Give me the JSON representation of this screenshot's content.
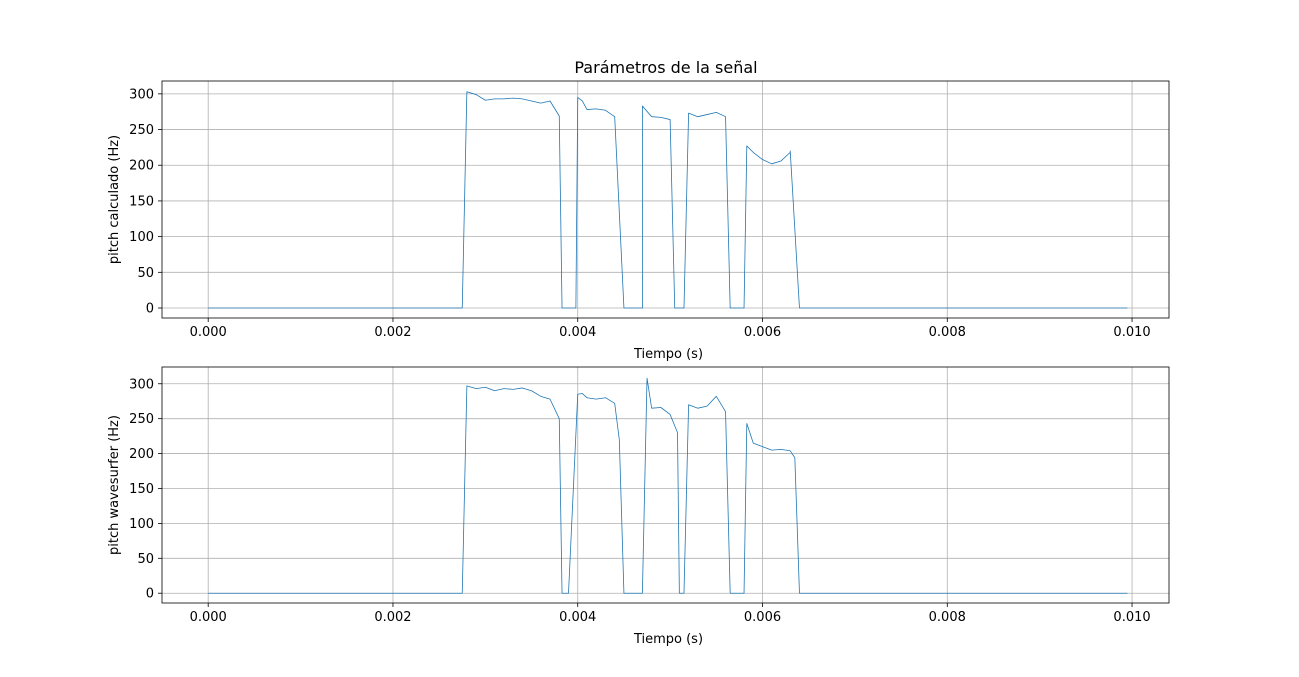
{
  "figure": {
    "title": "Parámetros de la señal"
  },
  "chart_data": [
    {
      "type": "line",
      "xlabel": "Tiempo (s)",
      "ylabel": "pitch calculado (Hz)",
      "xlim": [
        -0.0005,
        0.0104
      ],
      "ylim": [
        -14,
        318
      ],
      "xticks": [
        0.0,
        0.002,
        0.004,
        0.006,
        0.008,
        0.01
      ],
      "xtick_labels": [
        "0.000",
        "0.002",
        "0.004",
        "0.006",
        "0.008",
        "0.010"
      ],
      "yticks": [
        0,
        50,
        100,
        150,
        200,
        250,
        300
      ],
      "ytick_labels": [
        "0",
        "50",
        "100",
        "150",
        "200",
        "250",
        "300"
      ],
      "grid": true,
      "line_color": "#1f77b4",
      "series": [
        {
          "x": [
            0.0,
            0.00275,
            0.0028,
            0.0029,
            0.003,
            0.0031,
            0.0032,
            0.0033,
            0.0034,
            0.0035,
            0.0036,
            0.0037,
            0.0038,
            0.00383,
            0.00385,
            0.0039,
            0.00395,
            0.00398,
            0.004,
            0.00405,
            0.0041,
            0.0042,
            0.0043,
            0.0044,
            0.0045,
            0.00452,
            0.00455,
            0.0047,
            0.0047,
            0.0048,
            0.0049,
            0.005,
            0.00505,
            0.0051,
            0.00515,
            0.0052,
            0.0053,
            0.0054,
            0.0055,
            0.0056,
            0.00565,
            0.0057,
            0.0058,
            0.00583,
            0.0059,
            0.006,
            0.0061,
            0.0062,
            0.0063,
            0.0063,
            0.0064,
            0.00995
          ],
          "y": [
            0,
            0,
            303,
            299,
            291,
            293,
            293,
            294,
            293,
            290,
            287,
            290,
            269,
            0,
            0,
            0,
            0,
            0,
            295,
            290,
            278,
            279,
            277,
            268,
            0,
            0,
            0,
            0,
            283,
            268,
            267,
            264,
            0,
            0,
            0,
            273,
            268,
            271,
            274,
            268,
            0,
            0,
            0,
            227,
            218,
            208,
            202,
            206,
            218,
            220,
            0,
            0
          ]
        }
      ]
    },
    {
      "type": "line",
      "xlabel": "Tiempo (s)",
      "ylabel": "pitch wavesurfer (Hz)",
      "xlim": [
        -0.0005,
        0.0104
      ],
      "ylim": [
        -14,
        324
      ],
      "xticks": [
        0.0,
        0.002,
        0.004,
        0.006,
        0.008,
        0.01
      ],
      "xtick_labels": [
        "0.000",
        "0.002",
        "0.004",
        "0.006",
        "0.008",
        "0.010"
      ],
      "yticks": [
        0,
        50,
        100,
        150,
        200,
        250,
        300
      ],
      "ytick_labels": [
        "0",
        "50",
        "100",
        "150",
        "200",
        "250",
        "300"
      ],
      "grid": true,
      "line_color": "#1f77b4",
      "series": [
        {
          "x": [
            0.0,
            0.00275,
            0.0028,
            0.0029,
            0.003,
            0.0031,
            0.0032,
            0.0033,
            0.0034,
            0.0035,
            0.0036,
            0.0037,
            0.0038,
            0.00383,
            0.00385,
            0.0039,
            0.004,
            0.00405,
            0.0041,
            0.0042,
            0.0043,
            0.0044,
            0.00445,
            0.0045,
            0.00455,
            0.0047,
            0.00475,
            0.0048,
            0.0049,
            0.005,
            0.00508,
            0.0051,
            0.00515,
            0.0052,
            0.0053,
            0.0054,
            0.0055,
            0.0056,
            0.00565,
            0.0057,
            0.0058,
            0.00583,
            0.0059,
            0.006,
            0.0061,
            0.0062,
            0.0063,
            0.00635,
            0.0064,
            0.00995
          ],
          "y": [
            0,
            0,
            297,
            293,
            295,
            290,
            293,
            292,
            294,
            290,
            282,
            278,
            250,
            0,
            0,
            0,
            285,
            286,
            280,
            278,
            280,
            272,
            220,
            0,
            0,
            0,
            308,
            265,
            266,
            256,
            230,
            0,
            0,
            270,
            265,
            268,
            282,
            260,
            0,
            0,
            0,
            243,
            215,
            210,
            205,
            206,
            204,
            194,
            0,
            0
          ]
        }
      ]
    }
  ]
}
